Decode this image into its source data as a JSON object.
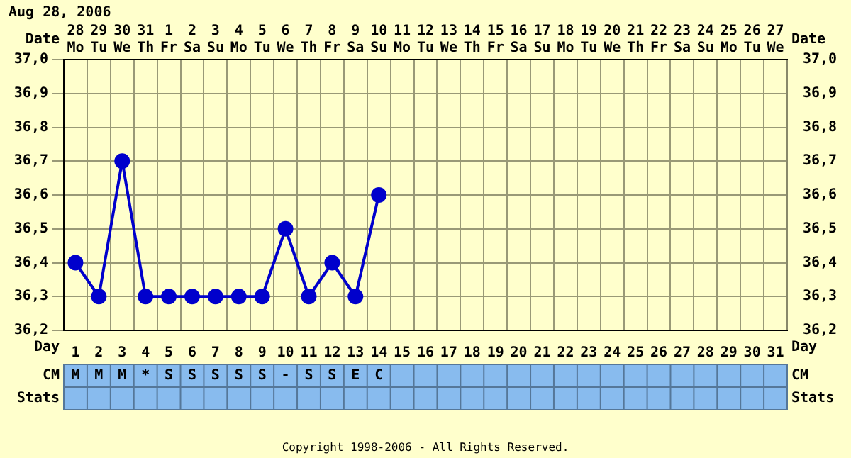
{
  "chart_data": {
    "type": "line",
    "title": "Aug 28, 2006",
    "xlabel": "Date",
    "x2label": "Day",
    "categories": [
      "28 Mo",
      "29 Tu",
      "30 We",
      "31 Th",
      "1 Fr",
      "2 Sa",
      "3 Su",
      "4 Mo",
      "5 Tu",
      "6 We",
      "7 Th",
      "8 Fr",
      "9 Sa",
      "10 Su",
      "11 Mo",
      "12 Tu",
      "13 We",
      "14 Th",
      "15 Fr",
      "16 Sa",
      "17 Su",
      "18 Mo",
      "19 Tu",
      "20 We",
      "21 Th",
      "22 Fr",
      "23 Sa",
      "24 Su",
      "25 Mo",
      "26 Tu",
      "27 We"
    ],
    "series": [
      {
        "color": "#0000cc",
        "values": [
          36.4,
          36.3,
          36.7,
          36.3,
          36.3,
          36.3,
          36.3,
          36.3,
          36.3,
          36.5,
          36.3,
          36.4,
          36.3,
          36.6,
          null,
          null,
          null,
          null,
          null,
          null,
          null,
          null,
          null,
          null,
          null,
          null,
          null,
          null,
          null,
          null,
          null
        ]
      }
    ],
    "x2lim": [
      0.5,
      31.5
    ],
    "x2ticks": [
      1,
      2,
      3,
      4,
      5,
      6,
      7,
      8,
      9,
      10,
      11,
      12,
      13,
      14,
      15,
      16,
      17,
      18,
      19,
      20,
      21,
      22,
      23,
      24,
      25,
      26,
      27,
      28,
      29,
      30,
      31
    ],
    "ylim": [
      36.2,
      37.0
    ],
    "yticks": [
      {
        "value": 36.2,
        "label": "36,2"
      },
      {
        "value": 36.3,
        "label": "36,3"
      },
      {
        "value": 36.4,
        "label": "36,4"
      },
      {
        "value": 36.5,
        "label": "36,5"
      },
      {
        "value": 36.6,
        "label": "36,6"
      },
      {
        "value": 36.7,
        "label": "36,7"
      },
      {
        "value": 36.8,
        "label": "36,8"
      },
      {
        "value": 36.9,
        "label": "36,9"
      },
      {
        "value": 37.0,
        "label": "37,0"
      }
    ],
    "y2lim": [
      36.2,
      37.0
    ],
    "y2ticks": [
      {
        "value": 36.2,
        "label": "36,2"
      },
      {
        "value": 36.3,
        "label": "36,3"
      },
      {
        "value": 36.4,
        "label": "36,4"
      },
      {
        "value": 36.5,
        "label": "36,5"
      },
      {
        "value": 36.6,
        "label": "36,6"
      },
      {
        "value": 36.7,
        "label": "36,7"
      },
      {
        "value": 36.8,
        "label": "36,8"
      },
      {
        "value": 36.9,
        "label": "36,9"
      },
      {
        "value": 37.0,
        "label": "37,0"
      }
    ],
    "grid": true,
    "legend": false,
    "marker": "circle",
    "line_style": "solid",
    "annotations": [
      "CM",
      "Stats",
      "M",
      "M",
      "M",
      "*",
      "S",
      "S",
      "S",
      "S",
      "S",
      "-",
      "S",
      "S",
      "E",
      "C",
      "Copyright 1998-2006 - All Rights Reserved."
    ]
  }
}
